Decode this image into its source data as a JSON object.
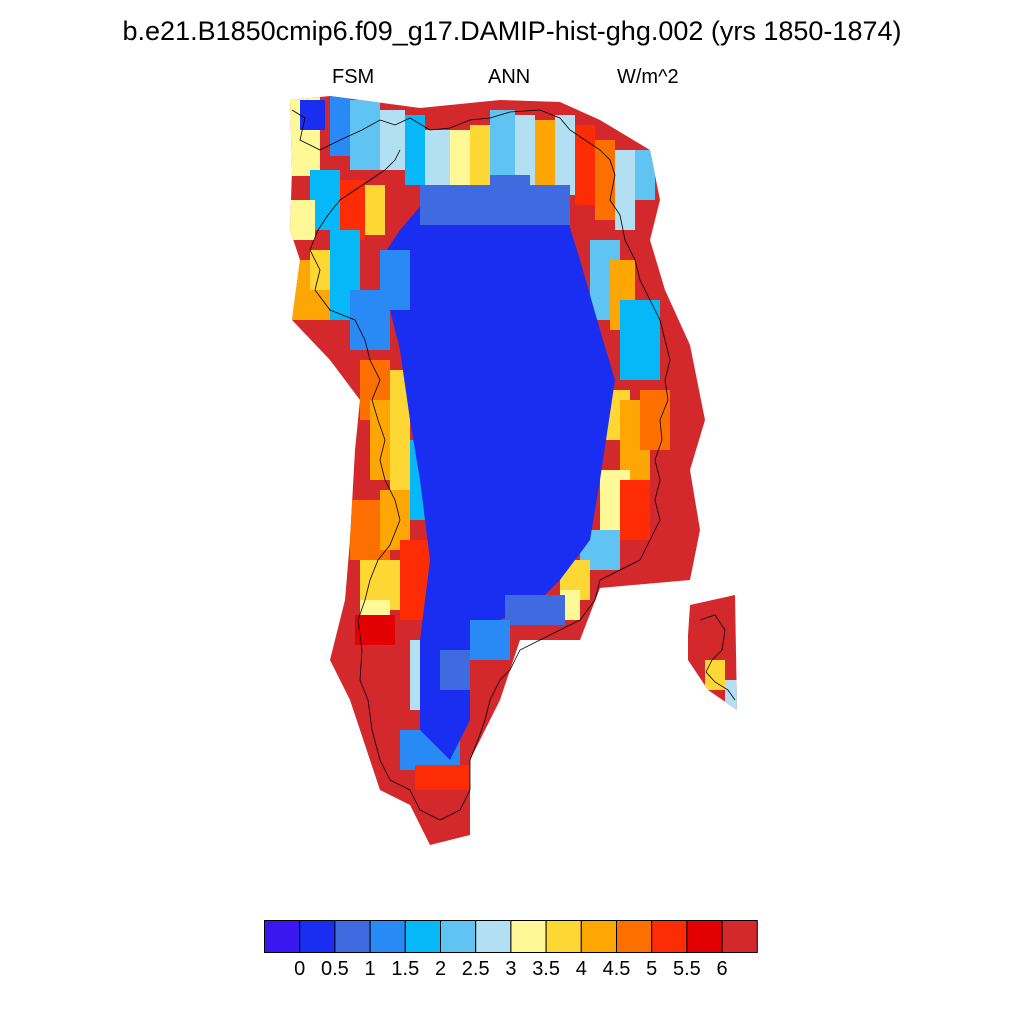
{
  "title": "b.e21.B1850cmip6.f09_g17.DAMIP-hist-ghg.002 (yrs 1850-1874)",
  "subtitle": {
    "left": "FSM",
    "center": "ANN",
    "right": "W/m^2"
  },
  "colorbar": {
    "levels": [
      "0",
      "0.5",
      "1",
      "1.5",
      "2",
      "2.5",
      "3",
      "3.5",
      "4",
      "4.5",
      "5",
      "5.5",
      "6"
    ],
    "colors": [
      "#3a17f0",
      "#1a2ef2",
      "#3f6ae0",
      "#2989f5",
      "#06b8f7",
      "#60c4f2",
      "#b2dff1",
      "#fff897",
      "#fdd733",
      "#fea704",
      "#fd6f00",
      "#fe2c05",
      "#e30003",
      "#d3292d"
    ]
  },
  "map": {
    "region": "Greenland",
    "variable": "FSM",
    "units": "W/m^2",
    "season": "ANN",
    "coastline": true
  }
}
